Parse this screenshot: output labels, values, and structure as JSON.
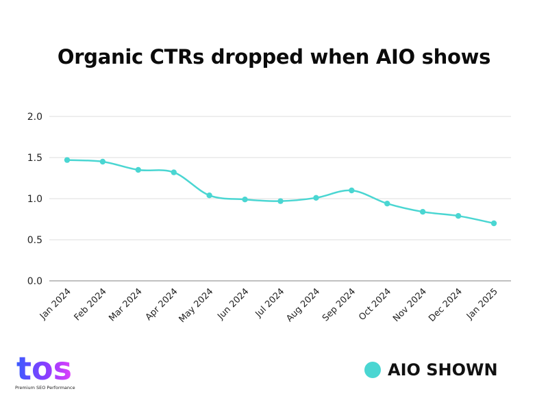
{
  "chart_data": {
    "type": "line",
    "title": "Organic CTRs dropped when AIO shows",
    "categories": [
      "Jan 2024",
      "Feb 2024",
      "Mar 2024",
      "Apr 2024",
      "May 2024",
      "Jun 2024",
      "Jul 2024",
      "Aug 2024",
      "Sep 2024",
      "Oct 2024",
      "Nov 2024",
      "Dec 2024",
      "Jan 2025"
    ],
    "series": [
      {
        "name": "AIO SHOWN",
        "values": [
          1.47,
          1.45,
          1.35,
          1.32,
          1.04,
          0.99,
          0.97,
          1.01,
          1.1,
          0.94,
          0.84,
          0.79,
          0.7
        ],
        "color": "#4ad6d2"
      }
    ],
    "y_ticks": [
      "0.0",
      "0.5",
      "1.0",
      "1.5",
      "2.0"
    ],
    "ylim": [
      0,
      2.0
    ],
    "grid": "horizontal",
    "legend_position": "bottom-right",
    "xlabel": "",
    "ylabel": ""
  },
  "logo": {
    "text": "tos",
    "tagline": "Premium SEO Performance",
    "colors": [
      "#3b5bff",
      "#8b3dff",
      "#e040fb"
    ]
  }
}
